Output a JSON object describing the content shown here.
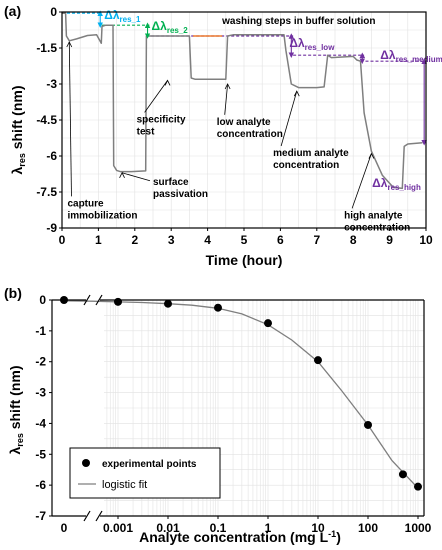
{
  "chart_data": [
    {
      "panel": "(a)",
      "type": "line",
      "xlabel": "Time (hour)",
      "ylabel_main": "λ",
      "ylabel_sub": "res",
      "ylabel_tail": " shift (nm)",
      "xlim": [
        0,
        10
      ],
      "ylim": [
        -9,
        0
      ],
      "xticks": [
        "0",
        "1",
        "2",
        "3",
        "4",
        "5",
        "6",
        "7",
        "8",
        "9",
        "10"
      ],
      "yticks": [
        "0",
        "-1.5",
        "-3",
        "-4.5",
        "-6",
        "-7.5",
        "-9"
      ],
      "grid": true,
      "series": [
        {
          "color": "#7f7f7f",
          "x": [
            0,
            0.1,
            0.12,
            0.2,
            0.4,
            0.7,
            0.95,
            1.08,
            1.1,
            1.2,
            1.4,
            1.42,
            1.5,
            1.6,
            1.9,
            2.3,
            2.32,
            2.45,
            3.5,
            3.55,
            3.65,
            4.0,
            4.5,
            4.55,
            4.7,
            5.4,
            6.1,
            6.15,
            6.3,
            6.5,
            7.0,
            7.2,
            7.3,
            7.4,
            8.0,
            8.1,
            8.2,
            8.3,
            8.5,
            8.8,
            9.1,
            9.35,
            9.4,
            9.5,
            9.9
          ],
          "y": [
            -0.05,
            -0.05,
            -1.0,
            -1.2,
            -1.12,
            -0.98,
            -0.95,
            -1.3,
            -0.6,
            -0.55,
            -0.55,
            -6.4,
            -6.6,
            -6.65,
            -6.65,
            -6.62,
            -1.0,
            -1.0,
            -1.0,
            -2.75,
            -2.8,
            -2.8,
            -2.8,
            -1.0,
            -0.95,
            -0.95,
            -0.95,
            -1.6,
            -3.0,
            -3.15,
            -3.15,
            -3.12,
            -1.8,
            -1.9,
            -1.85,
            -2.0,
            -2.05,
            -4.2,
            -5.8,
            -6.8,
            -7.3,
            -7.35,
            -5.6,
            -5.5,
            -5.45
          ]
        }
      ],
      "reference_lines": [
        {
          "y": -0.05,
          "x_from": 0,
          "x_to": 1.1,
          "color": "#00b0f0",
          "style": "dashed"
        },
        {
          "y": -0.55,
          "x_from": 1.1,
          "x_to": 2.4,
          "color": "#00b050",
          "style": "dashed"
        },
        {
          "y": -1.0,
          "x_from": 2.45,
          "x_to": 6.35,
          "color": "#7030a0",
          "style": "dashed"
        },
        {
          "y": -1.8,
          "x_from": 6.35,
          "x_to": 8.3,
          "color": "#7030a0",
          "style": "dashed"
        },
        {
          "y": -2.05,
          "x_from": 8.2,
          "x_to": 10,
          "color": "#7030a0",
          "style": "dashed"
        },
        {
          "y": -1.0,
          "x_from": 3.6,
          "x_to": 4.4,
          "color": "#ed7d31",
          "style": "solid"
        }
      ],
      "delta_arrows": [
        {
          "x": 1.05,
          "y_from": -0.05,
          "y_to": -0.55,
          "color": "#00b0f0",
          "label_main": "Δλ",
          "label_sub": "res_1"
        },
        {
          "x": 2.35,
          "y_from": -0.55,
          "y_to": -1.0,
          "color": "#00b050",
          "label_main": "Δλ",
          "label_sub": "res_2"
        },
        {
          "x": 6.3,
          "y_from": -1.0,
          "y_to": -1.8,
          "color": "#7030a0",
          "label_main": "Δλ",
          "label_sub": "res_low"
        },
        {
          "x": 8.25,
          "y_from": -1.8,
          "y_to": -2.05,
          "color": "#7030a0",
          "label_main": "Δλ",
          "label_sub": "res_medium"
        },
        {
          "x": 9.95,
          "y_from": -2.05,
          "y_to": -5.45,
          "color": "#7030a0",
          "label_main": "Δλ",
          "label_sub": "res_high"
        }
      ],
      "annotations": [
        {
          "lines": [
            "washing steps in buffer solution"
          ],
          "x": 4.4,
          "y": -0.5,
          "arrow": null
        },
        {
          "lines": [
            "specificity",
            "test"
          ],
          "x": 2.05,
          "y": -4.6,
          "arrow": [
            2.9,
            -2.85
          ]
        },
        {
          "lines": [
            "low analyte",
            "concentration"
          ],
          "x": 4.25,
          "y": -4.7,
          "arrow": [
            4.55,
            -3.0
          ]
        },
        {
          "lines": [
            "medium analyte",
            "concentration"
          ],
          "x": 5.8,
          "y": -6.0,
          "arrow": [
            6.45,
            -3.3
          ]
        },
        {
          "lines": [
            "capture",
            "immobilization"
          ],
          "x": 0.15,
          "y": -8.1,
          "arrow": [
            0.2,
            -1.25
          ]
        },
        {
          "lines": [
            "surface",
            "passivation"
          ],
          "x": 2.5,
          "y": -7.2,
          "arrow": [
            1.65,
            -6.7
          ]
        },
        {
          "lines": [
            "high analyte",
            "concentration"
          ],
          "x": 7.75,
          "y": -8.6,
          "arrow": [
            8.5,
            -5.9
          ]
        }
      ]
    },
    {
      "panel": "(b)",
      "type": "scatter",
      "xlabel_main": "Analyte concentration (mg L",
      "xlabel_sup": "-1",
      "xlabel_tail": ")",
      "ylabel_main": "λ",
      "ylabel_sub": "res",
      "ylabel_tail": " shift (nm)",
      "x_scale": "log",
      "x_break": true,
      "ylim": [
        -7,
        0
      ],
      "xticks": [
        "0.001",
        "0.01",
        "0.1",
        "1",
        "10",
        "100",
        "1000"
      ],
      "x_zero_tick": "0",
      "yticks": [
        "0",
        "-1",
        "-2",
        "-3",
        "-4",
        "-5",
        "-6",
        "-7"
      ],
      "grid": true,
      "legend_position": "bottom-left",
      "series": [
        {
          "name": "experimental points",
          "kind": "points",
          "color": "#000000",
          "x": [
            0,
            0.001,
            0.01,
            0.1,
            1,
            10,
            100,
            500,
            1000
          ],
          "y": [
            0.0,
            -0.06,
            -0.12,
            -0.25,
            -0.75,
            -1.95,
            -4.05,
            -5.65,
            -6.05
          ]
        },
        {
          "name": "logistic fit",
          "kind": "line",
          "color": "#7f7f7f",
          "x": [
            0,
            0.0001,
            0.0003,
            0.001,
            0.003,
            0.01,
            0.03,
            0.1,
            0.3,
            1,
            3,
            10,
            30,
            100,
            300,
            1000
          ],
          "y": [
            -0.02,
            -0.03,
            -0.04,
            -0.06,
            -0.08,
            -0.12,
            -0.17,
            -0.27,
            -0.45,
            -0.8,
            -1.3,
            -2.0,
            -2.95,
            -4.05,
            -5.2,
            -6.1
          ]
        }
      ]
    }
  ]
}
